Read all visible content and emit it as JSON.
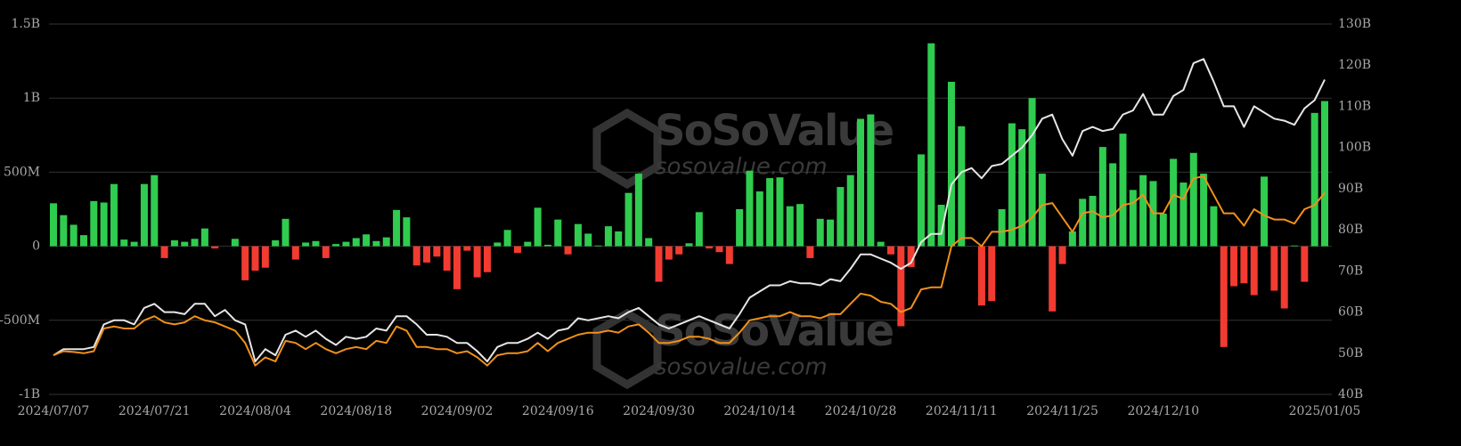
{
  "chart_data": {
    "type": "bar",
    "watermark": [
      "SoSoValue",
      "sosovalue.com"
    ],
    "categories": [
      "2024/07/07",
      null,
      null,
      null,
      null,
      null,
      null,
      null,
      null,
      null,
      "2024/07/21",
      null,
      null,
      null,
      null,
      null,
      null,
      null,
      null,
      null,
      "2024/08/04",
      null,
      null,
      null,
      null,
      null,
      null,
      null,
      null,
      null,
      "2024/08/18",
      null,
      null,
      null,
      null,
      null,
      null,
      null,
      null,
      null,
      "2024/09/02",
      null,
      null,
      null,
      null,
      null,
      null,
      null,
      null,
      null,
      "2024/09/16",
      null,
      null,
      null,
      null,
      null,
      null,
      null,
      null,
      null,
      "2024/09/30",
      null,
      null,
      null,
      null,
      null,
      null,
      null,
      null,
      null,
      "2024/10/14",
      null,
      null,
      null,
      null,
      null,
      null,
      null,
      null,
      null,
      "2024/10/28",
      null,
      null,
      null,
      null,
      null,
      null,
      null,
      null,
      null,
      "2024/11/11",
      null,
      null,
      null,
      null,
      null,
      null,
      null,
      null,
      null,
      "2024/11/25",
      null,
      null,
      null,
      null,
      null,
      null,
      null,
      null,
      null,
      "2024/12/10",
      null,
      null,
      null,
      null,
      null,
      null,
      null,
      null,
      null,
      null,
      null,
      null,
      null,
      null,
      null,
      "2025/01/05"
    ],
    "series": [
      {
        "type": "bar",
        "color": "#2fcc4f",
        "negative_color": "#f23b31",
        "values": [
          290,
          210,
          145,
          75,
          305,
          295,
          420,
          45,
          30,
          420,
          480,
          -80,
          40,
          30,
          50,
          120,
          -15,
          0,
          50,
          -230,
          -165,
          -145,
          40,
          185,
          -90,
          25,
          35,
          -80,
          15,
          30,
          55,
          80,
          35,
          60,
          245,
          195,
          -130,
          -110,
          -70,
          -165,
          -290,
          -30,
          -210,
          -175,
          25,
          110,
          -45,
          30,
          260,
          10,
          180,
          -55,
          150,
          85,
          5,
          135,
          100,
          360,
          490,
          55,
          -240,
          -90,
          -55,
          20,
          230,
          -15,
          -40,
          -120,
          250,
          510,
          370,
          460,
          465,
          270,
          285,
          -80,
          185,
          180,
          400,
          480,
          860,
          890,
          30,
          -55,
          -540,
          -140,
          620,
          1370,
          280,
          1110,
          810,
          0,
          -400,
          -370,
          250,
          830,
          790,
          1000,
          490,
          -440,
          -120,
          100,
          320,
          340,
          670,
          560,
          760,
          380,
          480,
          440,
          220,
          590,
          430,
          630,
          490,
          270,
          -680,
          -270,
          -250,
          -330,
          470,
          -300,
          -420,
          5,
          -240,
          900,
          980
        ]
      },
      {
        "type": "line",
        "axis": "y2",
        "color": "#e6e6e6",
        "values": [
          49.5,
          51,
          51,
          51,
          51.5,
          57,
          58,
          58,
          57,
          61,
          62,
          60,
          60,
          59.5,
          62,
          62,
          59,
          60.5,
          58,
          57,
          48,
          51,
          49.5,
          54.5,
          55.5,
          54,
          55.5,
          53.5,
          52,
          54,
          53.5,
          54,
          56,
          55.5,
          59,
          59,
          57,
          54.5,
          54.5,
          54,
          52.5,
          52.5,
          50.5,
          48,
          51.5,
          52.5,
          52.5,
          53.5,
          55,
          53.5,
          55.5,
          56,
          58.5,
          58,
          58.5,
          59,
          58.5,
          60,
          61,
          59,
          57,
          56,
          57,
          58,
          59,
          58,
          57,
          56,
          59.5,
          63.5,
          65,
          66.5,
          66.5,
          67.5,
          67,
          67,
          66.5,
          68,
          67.5,
          70.5,
          74,
          74,
          73,
          72,
          70.5,
          72,
          77,
          79,
          79,
          91,
          94,
          95,
          92.5,
          95.5,
          96,
          98,
          100,
          103,
          107,
          108,
          102,
          98,
          104,
          105,
          104,
          104.5,
          108,
          109,
          113,
          108,
          108,
          112.5,
          114,
          120.5,
          121.5,
          116,
          110,
          110,
          105,
          110,
          108.5,
          107,
          106.5,
          105.5,
          109.5,
          111.5,
          116.5
        ]
      },
      {
        "type": "line",
        "axis": "y2",
        "color": "#f0901c",
        "values": [
          49.5,
          50.5,
          50.3,
          50,
          50.5,
          56,
          56.5,
          56,
          56,
          58,
          59,
          57.5,
          57,
          57.5,
          59,
          58,
          57.5,
          56.5,
          55.5,
          52.5,
          47,
          49,
          48,
          53,
          52.5,
          51,
          52.5,
          51,
          50,
          51,
          51.5,
          51,
          53,
          52.5,
          56.5,
          55.5,
          51.5,
          51.5,
          51,
          51,
          50,
          50.5,
          49,
          47,
          49.5,
          50,
          50,
          50.5,
          52.5,
          50.5,
          52.5,
          53.5,
          54.5,
          55,
          55,
          55.5,
          55,
          56.5,
          57,
          55,
          52.5,
          52.5,
          53,
          54,
          54,
          53.5,
          52.5,
          52.5,
          55,
          58,
          58.5,
          59,
          59,
          60,
          59,
          59,
          58.5,
          59.5,
          59.5,
          62,
          64.5,
          64,
          62.5,
          62,
          60,
          61,
          65.5,
          66,
          66,
          76,
          78,
          78,
          76,
          79.5,
          79.5,
          80,
          81,
          83,
          86,
          86.5,
          83,
          79.5,
          84,
          84.5,
          83,
          83.5,
          86,
          86.5,
          88.5,
          84,
          84,
          88.5,
          87.5,
          92.5,
          93,
          88.5,
          84,
          84,
          81,
          85,
          83.5,
          82.5,
          82.5,
          81.5,
          85,
          86,
          89
        ]
      }
    ],
    "ylim": [
      -1000,
      1500
    ],
    "yticks": [
      {
        "value": -1000,
        "label": "-1B"
      },
      {
        "value": -500,
        "label": "-500M"
      },
      0,
      {
        "value": 500,
        "label": "500M"
      },
      {
        "value": 1000,
        "label": "1B"
      },
      {
        "value": 1500,
        "label": "1.5B"
      }
    ],
    "y2lim": [
      40,
      130
    ],
    "y2ticks": [
      {
        "value": 40,
        "label": "40B"
      },
      {
        "value": 50,
        "label": "50B"
      },
      {
        "value": 60,
        "label": "60B"
      },
      {
        "value": 70,
        "label": "70B"
      },
      {
        "value": 80,
        "label": "80B"
      },
      {
        "value": 90,
        "label": "90B"
      },
      {
        "value": 100,
        "label": "100B"
      },
      {
        "value": 110,
        "label": "110B"
      },
      {
        "value": 120,
        "label": "120B"
      },
      {
        "value": 130,
        "label": "130B"
      }
    ],
    "grid": true
  }
}
